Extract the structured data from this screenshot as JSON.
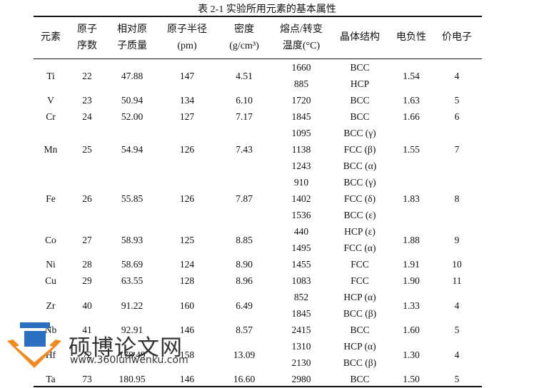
{
  "caption": "表 2-1  实验所用元素的基本属性",
  "headers": [
    [
      "元素"
    ],
    [
      "原子",
      "序数"
    ],
    [
      "相对原",
      "子质量"
    ],
    [
      "原子半径",
      "(pm)"
    ],
    [
      "密度",
      "(g/cm³)"
    ],
    [
      "熔点/转变",
      "温度(°C)"
    ],
    [
      "晶体结构"
    ],
    [
      "电负性"
    ],
    [
      "价电子"
    ]
  ],
  "elements": [
    {
      "symbol": "Ti",
      "number": "22",
      "mass": "47.88",
      "radius": "147",
      "density": "4.51",
      "temps": [
        "1660",
        "885"
      ],
      "structures": [
        "BCC",
        "HCP"
      ],
      "electronegativity": "1.54",
      "valence": "4"
    },
    {
      "symbol": "V",
      "number": "23",
      "mass": "50.94",
      "radius": "134",
      "density": "6.10",
      "temps": [
        "1720"
      ],
      "structures": [
        "BCC"
      ],
      "electronegativity": "1.63",
      "valence": "5"
    },
    {
      "symbol": "Cr",
      "number": "24",
      "mass": "52.00",
      "radius": "127",
      "density": "7.17",
      "temps": [
        "1845"
      ],
      "structures": [
        "BCC"
      ],
      "electronegativity": "1.66",
      "valence": "6"
    },
    {
      "symbol": "Mn",
      "number": "25",
      "mass": "54.94",
      "radius": "126",
      "density": "7.43",
      "temps": [
        "1095",
        "1138",
        "1243"
      ],
      "structures": [
        "BCC (γ)",
        "FCC (β)",
        "BCC (α)"
      ],
      "electronegativity": "1.55",
      "valence": "7"
    },
    {
      "symbol": "Fe",
      "number": "26",
      "mass": "55.85",
      "radius": "126",
      "density": "7.87",
      "temps": [
        "910",
        "1402",
        "1536"
      ],
      "structures": [
        "BCC (γ)",
        "FCC (δ)",
        "BCC (ε)"
      ],
      "electronegativity": "1.83",
      "valence": "8"
    },
    {
      "symbol": "Co",
      "number": "27",
      "mass": "58.93",
      "radius": "125",
      "density": "8.85",
      "temps": [
        "440",
        "1495"
      ],
      "structures": [
        "HCP (ε)",
        "FCC (α)"
      ],
      "electronegativity": "1.88",
      "valence": "9"
    },
    {
      "symbol": "Ni",
      "number": "28",
      "mass": "58.69",
      "radius": "124",
      "density": "8.90",
      "temps": [
        "1455"
      ],
      "structures": [
        "FCC"
      ],
      "electronegativity": "1.91",
      "valence": "10"
    },
    {
      "symbol": "Cu",
      "number": "29",
      "mass": "63.55",
      "radius": "128",
      "density": "8.96",
      "temps": [
        "1083"
      ],
      "structures": [
        "FCC"
      ],
      "electronegativity": "1.90",
      "valence": "11"
    },
    {
      "symbol": "Zr",
      "number": "40",
      "mass": "91.22",
      "radius": "160",
      "density": "6.49",
      "temps": [
        "852",
        "1845"
      ],
      "structures": [
        "HCP (α)",
        "BCC (β)"
      ],
      "electronegativity": "1.33",
      "valence": "4"
    },
    {
      "symbol": "Nb",
      "number": "41",
      "mass": "92.91",
      "radius": "146",
      "density": "8.57",
      "temps": [
        "2415"
      ],
      "structures": [
        "BCC"
      ],
      "electronegativity": "1.60",
      "valence": "5"
    },
    {
      "symbol": "Hf",
      "number": "72",
      "mass": "178.49",
      "radius": "158",
      "density": "13.09",
      "temps": [
        "1310",
        "2130"
      ],
      "structures": [
        "HCP (α)",
        "BCC (β)"
      ],
      "electronegativity": "1.30",
      "valence": "4"
    },
    {
      "symbol": "Ta",
      "number": "73",
      "mass": "180.95",
      "radius": "146",
      "density": "16.60",
      "temps": [
        "2980"
      ],
      "structures": [
        "BCC"
      ],
      "electronegativity": "1.50",
      "valence": "5"
    }
  ],
  "watermark": {
    "name": "硕博论文网",
    "url": "www.360lunwenku.com",
    "colors": {
      "blue": "#2a6fc0",
      "orange": "#f08a1c"
    }
  }
}
